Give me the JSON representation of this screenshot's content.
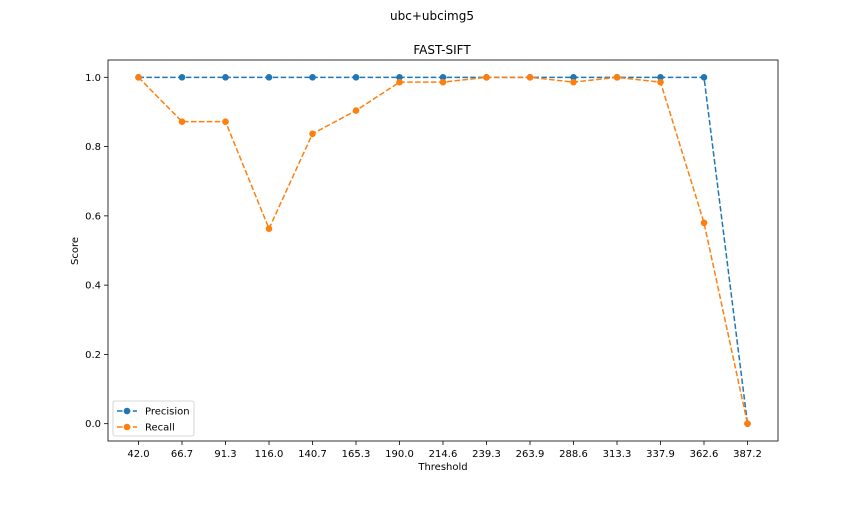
{
  "figure": {
    "suptitle": "ubc+ubcimg5"
  },
  "chart_data": {
    "type": "line",
    "title": "FAST-SIFT",
    "xlabel": "Threshold",
    "ylabel": "Score",
    "categories": [
      "42.0",
      "66.7",
      "91.3",
      "116.0",
      "140.7",
      "165.3",
      "190.0",
      "214.6",
      "239.3",
      "263.9",
      "288.6",
      "313.3",
      "337.9",
      "362.6",
      "387.2"
    ],
    "yticks": [
      "0.0",
      "0.2",
      "0.4",
      "0.6",
      "0.8",
      "1.0"
    ],
    "ylim": [
      -0.05,
      1.05
    ],
    "grid": false,
    "legend_position": "lower-left",
    "series": [
      {
        "name": "Precision",
        "color": "#1f77b4",
        "marker": "circle",
        "linestyle": "dashed",
        "values": [
          1.0,
          1.0,
          1.0,
          1.0,
          1.0,
          1.0,
          1.0,
          1.0,
          1.0,
          1.0,
          1.0,
          1.0,
          1.0,
          1.0,
          0.0
        ]
      },
      {
        "name": "Recall",
        "color": "#ff7f0e",
        "marker": "circle",
        "linestyle": "dashed",
        "values": [
          1.0,
          0.872,
          0.872,
          0.563,
          0.837,
          0.904,
          0.986,
          0.986,
          1.0,
          1.0,
          0.986,
          1.0,
          0.986,
          0.58,
          0.0
        ]
      }
    ]
  }
}
